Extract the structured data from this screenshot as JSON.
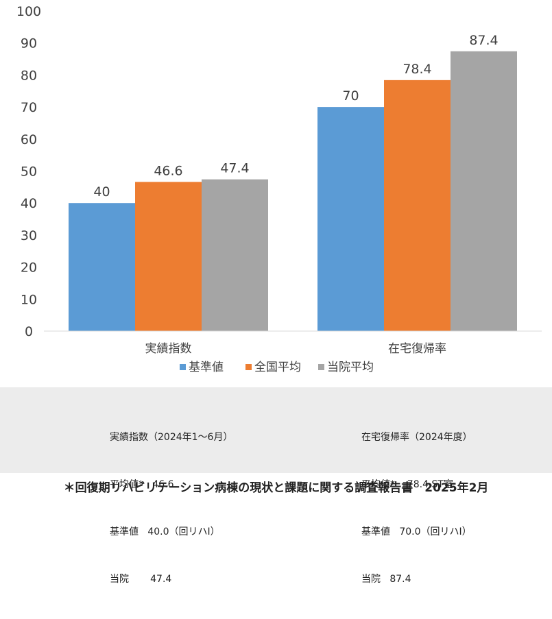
{
  "chart_data": {
    "type": "bar",
    "categories": [
      "実績指数",
      "在宅復帰率"
    ],
    "series": [
      {
        "name": "基準値",
        "values": [
          40,
          70
        ],
        "labels": [
          "40",
          "70"
        ],
        "color": "#5b9bd5"
      },
      {
        "name": "全国平均",
        "values": [
          46.6,
          78.4
        ],
        "labels": [
          "46.6",
          "78.4"
        ],
        "color": "#ed7d31"
      },
      {
        "name": "当院平均",
        "values": [
          47.4,
          87.4
        ],
        "labels": [
          "47.4",
          "87.4"
        ],
        "color": "#a5a5a5"
      }
    ],
    "ylim": [
      0,
      100
    ],
    "yticks": [
      0,
      10,
      20,
      30,
      40,
      50,
      60,
      70,
      80,
      90,
      100
    ],
    "grid": false,
    "legend_position": "bottom"
  },
  "notes": {
    "left": [
      "実績指数（2024年1〜6月）",
      "平均値*   46.6",
      "基準値   40.0（回リハⅠ）",
      "当院       47.4"
    ],
    "right": [
      "在宅復帰率（2024年度）",
      "平均値*    78.4 ST室",
      "基準値   70.0（回リハⅠ）",
      "当院   87.4"
    ]
  },
  "footer": "＊回復期リハビリテーション病棟の現状と課題に関する調査報告書　2025年2月"
}
